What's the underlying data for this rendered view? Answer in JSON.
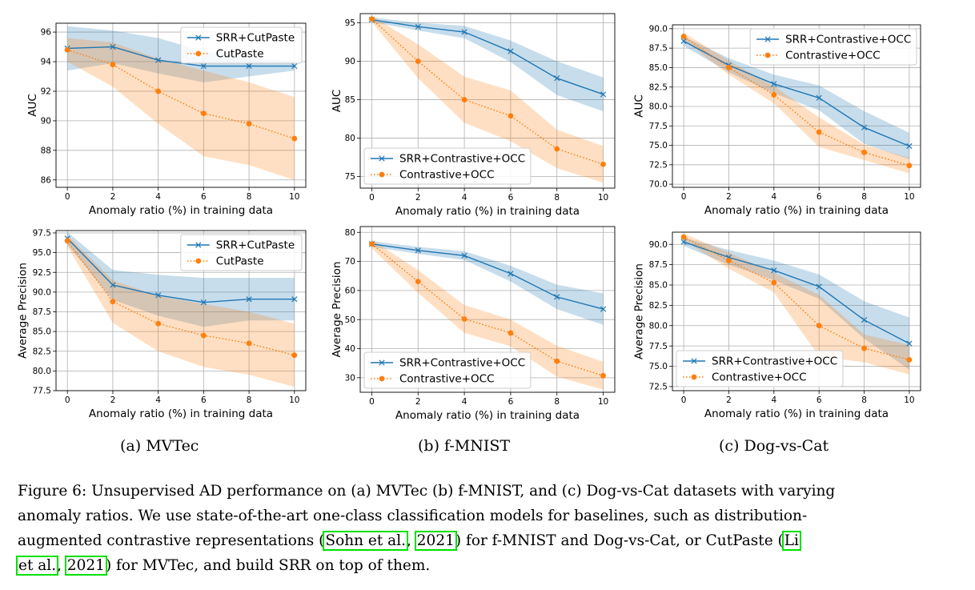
{
  "panels": [
    {
      "subplot_label": "(a) MVTec",
      "series_colors": [
        "#1f77b4",
        "#ff7f0e"
      ],
      "charts": [
        {
          "type": "line",
          "x": [
            0,
            2,
            4,
            6,
            8,
            10
          ],
          "xticks": [
            "0",
            "2",
            "4",
            "6",
            "8",
            "10"
          ],
          "xlabel": "Anomaly ratio (%) in training data",
          "ylabel": "AUC",
          "ylim": [
            85.5,
            96.6
          ],
          "yticks": [
            86,
            88,
            90,
            92,
            94,
            96
          ],
          "ytick_labels": [
            "86",
            "88",
            "90",
            "92",
            "94",
            "96"
          ],
          "legend_position": "top-right",
          "grid": true,
          "series": [
            {
              "name": "SRR+CutPaste",
              "marker": "x",
              "line": "solid",
              "values": [
                94.9,
                95.0,
                94.1,
                93.7,
                93.7,
                93.7
              ],
              "upper": [
                96.4,
                96.1,
                95.6,
                94.7,
                94.3,
                94.0
              ],
              "lower": [
                93.4,
                93.9,
                93.2,
                92.6,
                93.0,
                93.4
              ]
            },
            {
              "name": "CutPaste",
              "marker": "o",
              "line": "dotted",
              "values": [
                94.8,
                93.8,
                92.0,
                90.5,
                89.8,
                88.8
              ],
              "upper": [
                95.6,
                95.3,
                94.2,
                93.4,
                92.6,
                91.6
              ],
              "lower": [
                94.0,
                92.3,
                89.8,
                87.6,
                87.0,
                86.0
              ]
            }
          ]
        },
        {
          "type": "line",
          "x": [
            0,
            2,
            4,
            6,
            8,
            10
          ],
          "xticks": [
            "0",
            "2",
            "4",
            "6",
            "8",
            "10"
          ],
          "xlabel": "Anomaly ratio (%) in training data",
          "ylabel": "Average Precision",
          "ylim": [
            77.5,
            97.8
          ],
          "yticks": [
            77.5,
            80.0,
            82.5,
            85.0,
            87.5,
            90.0,
            92.5,
            95.0,
            97.5
          ],
          "ytick_labels": [
            "77.5",
            "80.0",
            "82.5",
            "85.0",
            "87.5",
            "90.0",
            "92.5",
            "95.0",
            "97.5"
          ],
          "legend_position": "top-right",
          "grid": true,
          "series": [
            {
              "name": "SRR+CutPaste",
              "marker": "x",
              "line": "solid",
              "values": [
                96.8,
                90.9,
                89.6,
                88.7,
                89.1,
                89.1
              ],
              "upper": [
                97.6,
                92.8,
                92.2,
                91.8,
                91.8,
                91.8
              ],
              "lower": [
                96.0,
                89.0,
                87.0,
                85.6,
                86.4,
                86.4
              ]
            },
            {
              "name": "CutPaste",
              "marker": "o",
              "line": "dotted",
              "values": [
                96.5,
                88.8,
                86.0,
                84.5,
                83.5,
                82.0
              ],
              "upper": [
                97.2,
                91.5,
                89.5,
                88.5,
                87.5,
                86.0
              ],
              "lower": [
                95.8,
                86.1,
                82.5,
                80.5,
                79.5,
                78.0
              ]
            }
          ]
        }
      ]
    },
    {
      "subplot_label": "(b) f-MNIST",
      "series_colors": [
        "#1f77b4",
        "#ff7f0e"
      ],
      "charts": [
        {
          "type": "line",
          "x": [
            0,
            2,
            4,
            6,
            8,
            10
          ],
          "xticks": [
            "0",
            "2",
            "4",
            "6",
            "8",
            "10"
          ],
          "xlabel": "Anomaly ratio (%) in training data",
          "ylabel": "AUC",
          "ylim": [
            73.5,
            96.2
          ],
          "yticks": [
            75,
            80,
            85,
            90,
            95
          ],
          "ytick_labels": [
            "75",
            "80",
            "85",
            "90",
            "95"
          ],
          "legend_position": "bottom-left",
          "grid": true,
          "series": [
            {
              "name": "SRR+Contrastive+OCC",
              "marker": "x",
              "line": "solid",
              "values": [
                95.4,
                94.5,
                93.8,
                91.3,
                87.8,
                85.7
              ],
              "upper": [
                95.7,
                95.0,
                94.6,
                92.7,
                90.0,
                87.9
              ],
              "lower": [
                95.1,
                94.0,
                93.0,
                89.9,
                85.6,
                83.5
              ]
            },
            {
              "name": "Contrastive+OCC",
              "marker": "o",
              "line": "dotted",
              "values": [
                95.5,
                90.0,
                85.0,
                82.9,
                78.6,
                76.6
              ],
              "upper": [
                95.9,
                92.2,
                88.0,
                86.2,
                81.1,
                79.0
              ],
              "lower": [
                95.1,
                87.8,
                82.0,
                79.6,
                76.1,
                74.2
              ]
            }
          ]
        },
        {
          "type": "line",
          "x": [
            0,
            2,
            4,
            6,
            8,
            10
          ],
          "xticks": [
            "0",
            "2",
            "4",
            "6",
            "8",
            "10"
          ],
          "xlabel": "Anomaly ratio (%) in training data",
          "ylabel": "Average Precision",
          "ylim": [
            25,
            82
          ],
          "yticks": [
            30,
            40,
            50,
            60,
            70,
            80
          ],
          "ytick_labels": [
            "30",
            "40",
            "50",
            "60",
            "70",
            "80"
          ],
          "legend_position": "bottom-left",
          "grid": true,
          "series": [
            {
              "name": "SRR+Contrastive+OCC",
              "marker": "x",
              "line": "solid",
              "values": [
                76.0,
                73.8,
                72.0,
                65.8,
                57.8,
                53.6
              ],
              "upper": [
                77.0,
                75.0,
                73.5,
                68.5,
                62.0,
                59.0
              ],
              "lower": [
                75.0,
                72.6,
                70.5,
                63.1,
                53.6,
                48.2
              ]
            },
            {
              "name": "Contrastive+OCC",
              "marker": "o",
              "line": "dotted",
              "values": [
                76.0,
                63.1,
                50.2,
                45.4,
                35.7,
                30.7
              ],
              "upper": [
                77.5,
                67.0,
                55.0,
                50.0,
                41.0,
                35.5
              ],
              "lower": [
                74.5,
                59.2,
                45.4,
                40.8,
                30.4,
                25.9
              ]
            }
          ]
        }
      ]
    },
    {
      "subplot_label": "(c) Dog-vs-Cat",
      "series_colors": [
        "#1f77b4",
        "#ff7f0e"
      ],
      "charts": [
        {
          "type": "line",
          "x": [
            0,
            2,
            4,
            6,
            8,
            10
          ],
          "xticks": [
            "0",
            "2",
            "4",
            "6",
            "8",
            "10"
          ],
          "xlabel": "Anomaly ratio (%) in training data",
          "ylabel": "AUC",
          "ylim": [
            69.6,
            90.5
          ],
          "yticks": [
            70.0,
            72.5,
            75.0,
            77.5,
            80.0,
            82.5,
            85.0,
            87.5,
            90.0
          ],
          "ytick_labels": [
            "70.0",
            "72.5",
            "75.0",
            "77.5",
            "80.0",
            "82.5",
            "85.0",
            "87.5",
            "90.0"
          ],
          "legend_position": "top-right",
          "grid": true,
          "series": [
            {
              "name": "SRR+Contrastive+OCC",
              "marker": "x",
              "line": "solid",
              "values": [
                88.4,
                85.3,
                82.9,
                81.1,
                77.3,
                74.9
              ],
              "upper": [
                89.0,
                86.2,
                84.1,
                82.7,
                79.4,
                76.6
              ],
              "lower": [
                87.8,
                84.4,
                81.7,
                79.5,
                75.2,
                73.2
              ]
            },
            {
              "name": "Contrastive+OCC",
              "marker": "o",
              "line": "dotted",
              "values": [
                89.0,
                85.0,
                81.5,
                76.7,
                74.1,
                72.4
              ],
              "upper": [
                89.5,
                85.9,
                82.6,
                78.6,
                75.1,
                73.4
              ],
              "lower": [
                88.5,
                84.1,
                80.4,
                74.8,
                73.1,
                71.4
              ]
            }
          ]
        },
        {
          "type": "line",
          "x": [
            0,
            2,
            4,
            6,
            8,
            10
          ],
          "xticks": [
            "0",
            "2",
            "4",
            "6",
            "8",
            "10"
          ],
          "xlabel": "Anomaly ratio (%) in training data",
          "ylabel": "Average Precision",
          "ylim": [
            72.0,
            91.5
          ],
          "yticks": [
            72.5,
            75.0,
            77.5,
            80.0,
            82.5,
            85.0,
            87.5,
            90.0
          ],
          "ytick_labels": [
            "72.5",
            "75.0",
            "77.5",
            "80.0",
            "82.5",
            "85.0",
            "87.5",
            "90.0"
          ],
          "legend_position": "bottom-left",
          "grid": true,
          "series": [
            {
              "name": "SRR+Contrastive+OCC",
              "marker": "x",
              "line": "solid",
              "values": [
                90.3,
                88.4,
                86.8,
                84.8,
                80.7,
                77.8
              ],
              "upper": [
                90.8,
                89.3,
                88.0,
                86.3,
                83.0,
                81.0
              ],
              "lower": [
                89.8,
                87.5,
                85.6,
                83.3,
                78.4,
                74.6
              ]
            },
            {
              "name": "Contrastive+OCC",
              "marker": "o",
              "line": "dotted",
              "values": [
                90.9,
                88.0,
                85.3,
                80.0,
                77.2,
                75.8
              ],
              "upper": [
                91.3,
                89.0,
                86.5,
                83.8,
                78.9,
                77.6
              ],
              "lower": [
                90.5,
                87.0,
                84.1,
                76.2,
                75.5,
                74.0
              ]
            }
          ]
        }
      ]
    }
  ],
  "caption": {
    "line1": "Figure 6: Unsupervised AD performance on (a) MVTec (b) f-MNIST, and (c) Dog-vs-Cat datasets with varying",
    "line2": "anomaly ratios. We use state-of-the-art one-class classification models for baselines, such as distribution-",
    "line3_pre": "augmented contrastive representations (",
    "cite1_author": "Sohn et al.",
    "cite_sep": ", ",
    "cite1_year": "2021",
    "line3_post": ") for f-MNIST and Dog-vs-Cat, or CutPaste (",
    "cite2_author_part1": "Li",
    "cite2_author_part2": "et al.",
    "cite2_year": "2021",
    "line4_post": ") for MVTec, and build SRR on top of them."
  }
}
